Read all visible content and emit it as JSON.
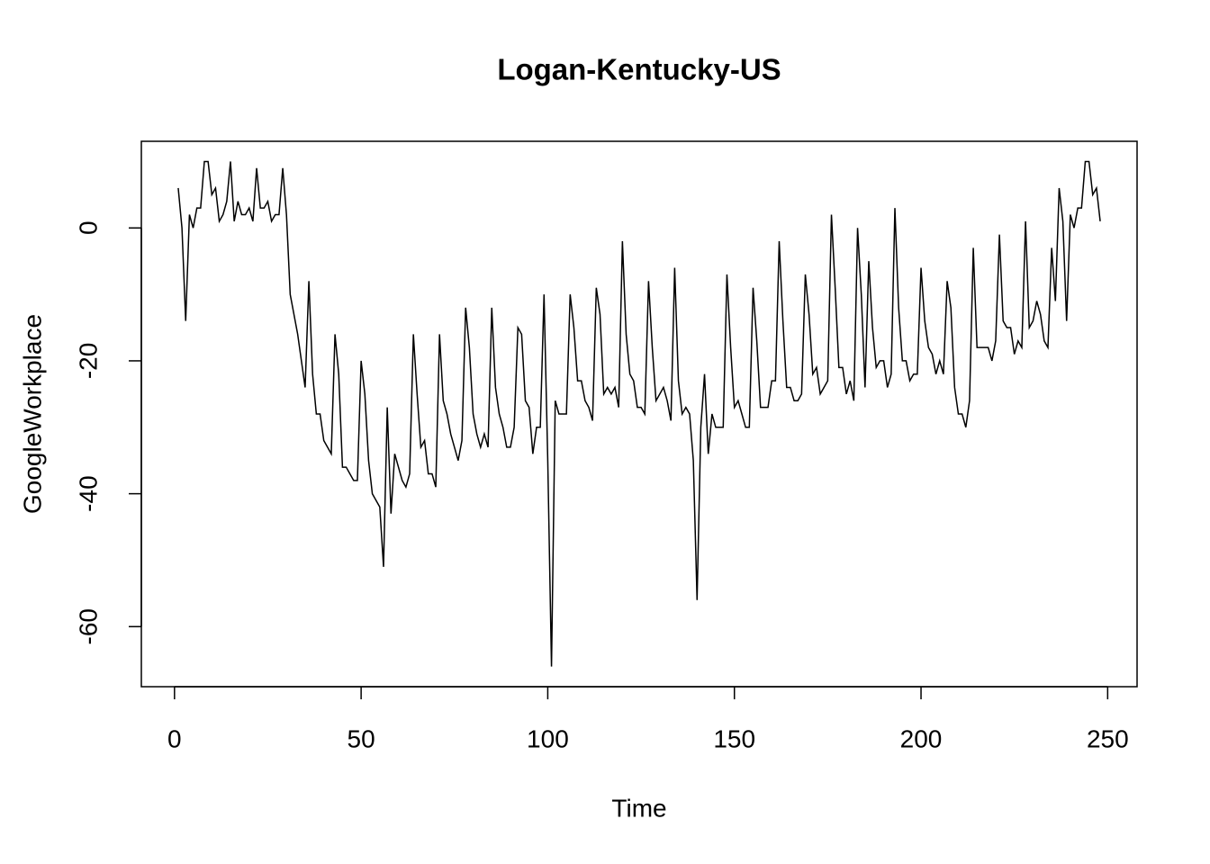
{
  "chart_data": {
    "type": "line",
    "title": "Logan-Kentucky-US",
    "x_label": "Time",
    "y_label": "GoogleWorkplace",
    "x": [
      1,
      2,
      3,
      4,
      5,
      6,
      7,
      8,
      9,
      10,
      11,
      12,
      13,
      14,
      15,
      16,
      17,
      18,
      19,
      20,
      21,
      22,
      23,
      24,
      25,
      26,
      27,
      28,
      29,
      30,
      31,
      32,
      33,
      34,
      35,
      36,
      37,
      38,
      39,
      40,
      41,
      42,
      43,
      44,
      45,
      46,
      47,
      48,
      49,
      50,
      51,
      52,
      53,
      54,
      55,
      56,
      57,
      58,
      59,
      60,
      61,
      62,
      63,
      64,
      65,
      66,
      67,
      68,
      69,
      70,
      71,
      72,
      73,
      74,
      75,
      76,
      77,
      78,
      79,
      80,
      81,
      82,
      83,
      84,
      85,
      86,
      87,
      88,
      89,
      90,
      91,
      92,
      93,
      94,
      95,
      96,
      97,
      98,
      99,
      100,
      101,
      102,
      103,
      104,
      105,
      106,
      107,
      108,
      109,
      110,
      111,
      112,
      113,
      114,
      115,
      116,
      117,
      118,
      119,
      120,
      121,
      122,
      123,
      124,
      125,
      126,
      127,
      128,
      129,
      130,
      131,
      132,
      133,
      134,
      135,
      136,
      137,
      138,
      139,
      140,
      141,
      142,
      143,
      144,
      145,
      146,
      147,
      148,
      149,
      150,
      151,
      152,
      153,
      154,
      155,
      156,
      157,
      158,
      159,
      160,
      161,
      162,
      163,
      164,
      165,
      166,
      167,
      168,
      169,
      170,
      171,
      172,
      173,
      174,
      175,
      176,
      177,
      178,
      179,
      180,
      181,
      182,
      183,
      184,
      185,
      186,
      187,
      188,
      189,
      190,
      191,
      192,
      193,
      194,
      195,
      196,
      197,
      198,
      199,
      200,
      201,
      202,
      203,
      204,
      205,
      206,
      207,
      208,
      209,
      210,
      211,
      212,
      213,
      214,
      215,
      216,
      217,
      218,
      219,
      220,
      221,
      222,
      223,
      224,
      225,
      226,
      227,
      228,
      229,
      230,
      231,
      232,
      233,
      234,
      235,
      236,
      237,
      238,
      239,
      240,
      241,
      242,
      243,
      244,
      245,
      246,
      247,
      248
    ],
    "series": [
      {
        "color": "#000000",
        "values": [
          6,
          0,
          -14,
          2,
          0,
          3,
          3,
          10,
          10,
          5,
          6,
          1,
          2,
          4,
          10,
          1,
          4,
          2,
          2,
          3,
          1,
          9,
          3,
          3,
          4,
          1,
          2,
          2,
          9,
          2,
          -10,
          -13,
          -16,
          -20,
          -24,
          -8,
          -22,
          -28,
          -28,
          -32,
          -33,
          -34,
          -16,
          -22,
          -36,
          -36,
          -37,
          -38,
          -38,
          -20,
          -25,
          -35,
          -40,
          -41,
          -42,
          -51,
          -27,
          -43,
          -34,
          -36,
          -38,
          -39,
          -37,
          -16,
          -25,
          -33,
          -32,
          -37,
          -37,
          -39,
          -16,
          -26,
          -28,
          -31,
          -33,
          -35,
          -32,
          -12,
          -18,
          -28,
          -31,
          -33,
          -31,
          -33,
          -12,
          -24,
          -28,
          -30,
          -33,
          -33,
          -30,
          -15,
          -16,
          -26,
          -27,
          -34,
          -30,
          -30,
          -10,
          -35,
          -66,
          -26,
          -28,
          -28,
          -28,
          -10,
          -15,
          -23,
          -23,
          -26,
          -27,
          -29,
          -9,
          -13,
          -25,
          -24,
          -25,
          -24,
          -27,
          -2,
          -16,
          -22,
          -23,
          -27,
          -27,
          -28,
          -8,
          -18,
          -26,
          -25,
          -24,
          -26,
          -29,
          -6,
          -23,
          -28,
          -27,
          -28,
          -35,
          -56,
          -30,
          -22,
          -34,
          -28,
          -30,
          -30,
          -30,
          -7,
          -18,
          -27,
          -26,
          -28,
          -30,
          -30,
          -9,
          -17,
          -27,
          -27,
          -27,
          -23,
          -23,
          -2,
          -14,
          -24,
          -24,
          -26,
          -26,
          -25,
          -7,
          -13,
          -22,
          -21,
          -25,
          -24,
          -23,
          2,
          -9,
          -21,
          -21,
          -25,
          -23,
          -26,
          0,
          -10,
          -24,
          -5,
          -15,
          -21,
          -20,
          -20,
          -24,
          -22,
          3,
          -12,
          -20,
          -20,
          -23,
          -22,
          -22,
          -6,
          -14,
          -18,
          -19,
          -22,
          -20,
          -22,
          -8,
          -12,
          -24,
          -28,
          -28,
          -30,
          -26,
          -3,
          -18,
          -18,
          -18,
          -18,
          -20,
          -17,
          -1,
          -14,
          -15,
          -15,
          -19,
          -17,
          -18,
          1,
          -15,
          -14,
          -11,
          -13,
          -17,
          -18,
          -3,
          -11,
          6,
          1,
          -14,
          2,
          0,
          3,
          3,
          10,
          10,
          5,
          6,
          1
        ]
      }
    ],
    "xlim": [
      -8.88,
      257.88
    ],
    "ylim": [
      -69.04,
      13.04
    ],
    "xticks": [
      0,
      50,
      100,
      150,
      200,
      250
    ],
    "yticks": [
      -60,
      -40,
      -20,
      0
    ]
  }
}
